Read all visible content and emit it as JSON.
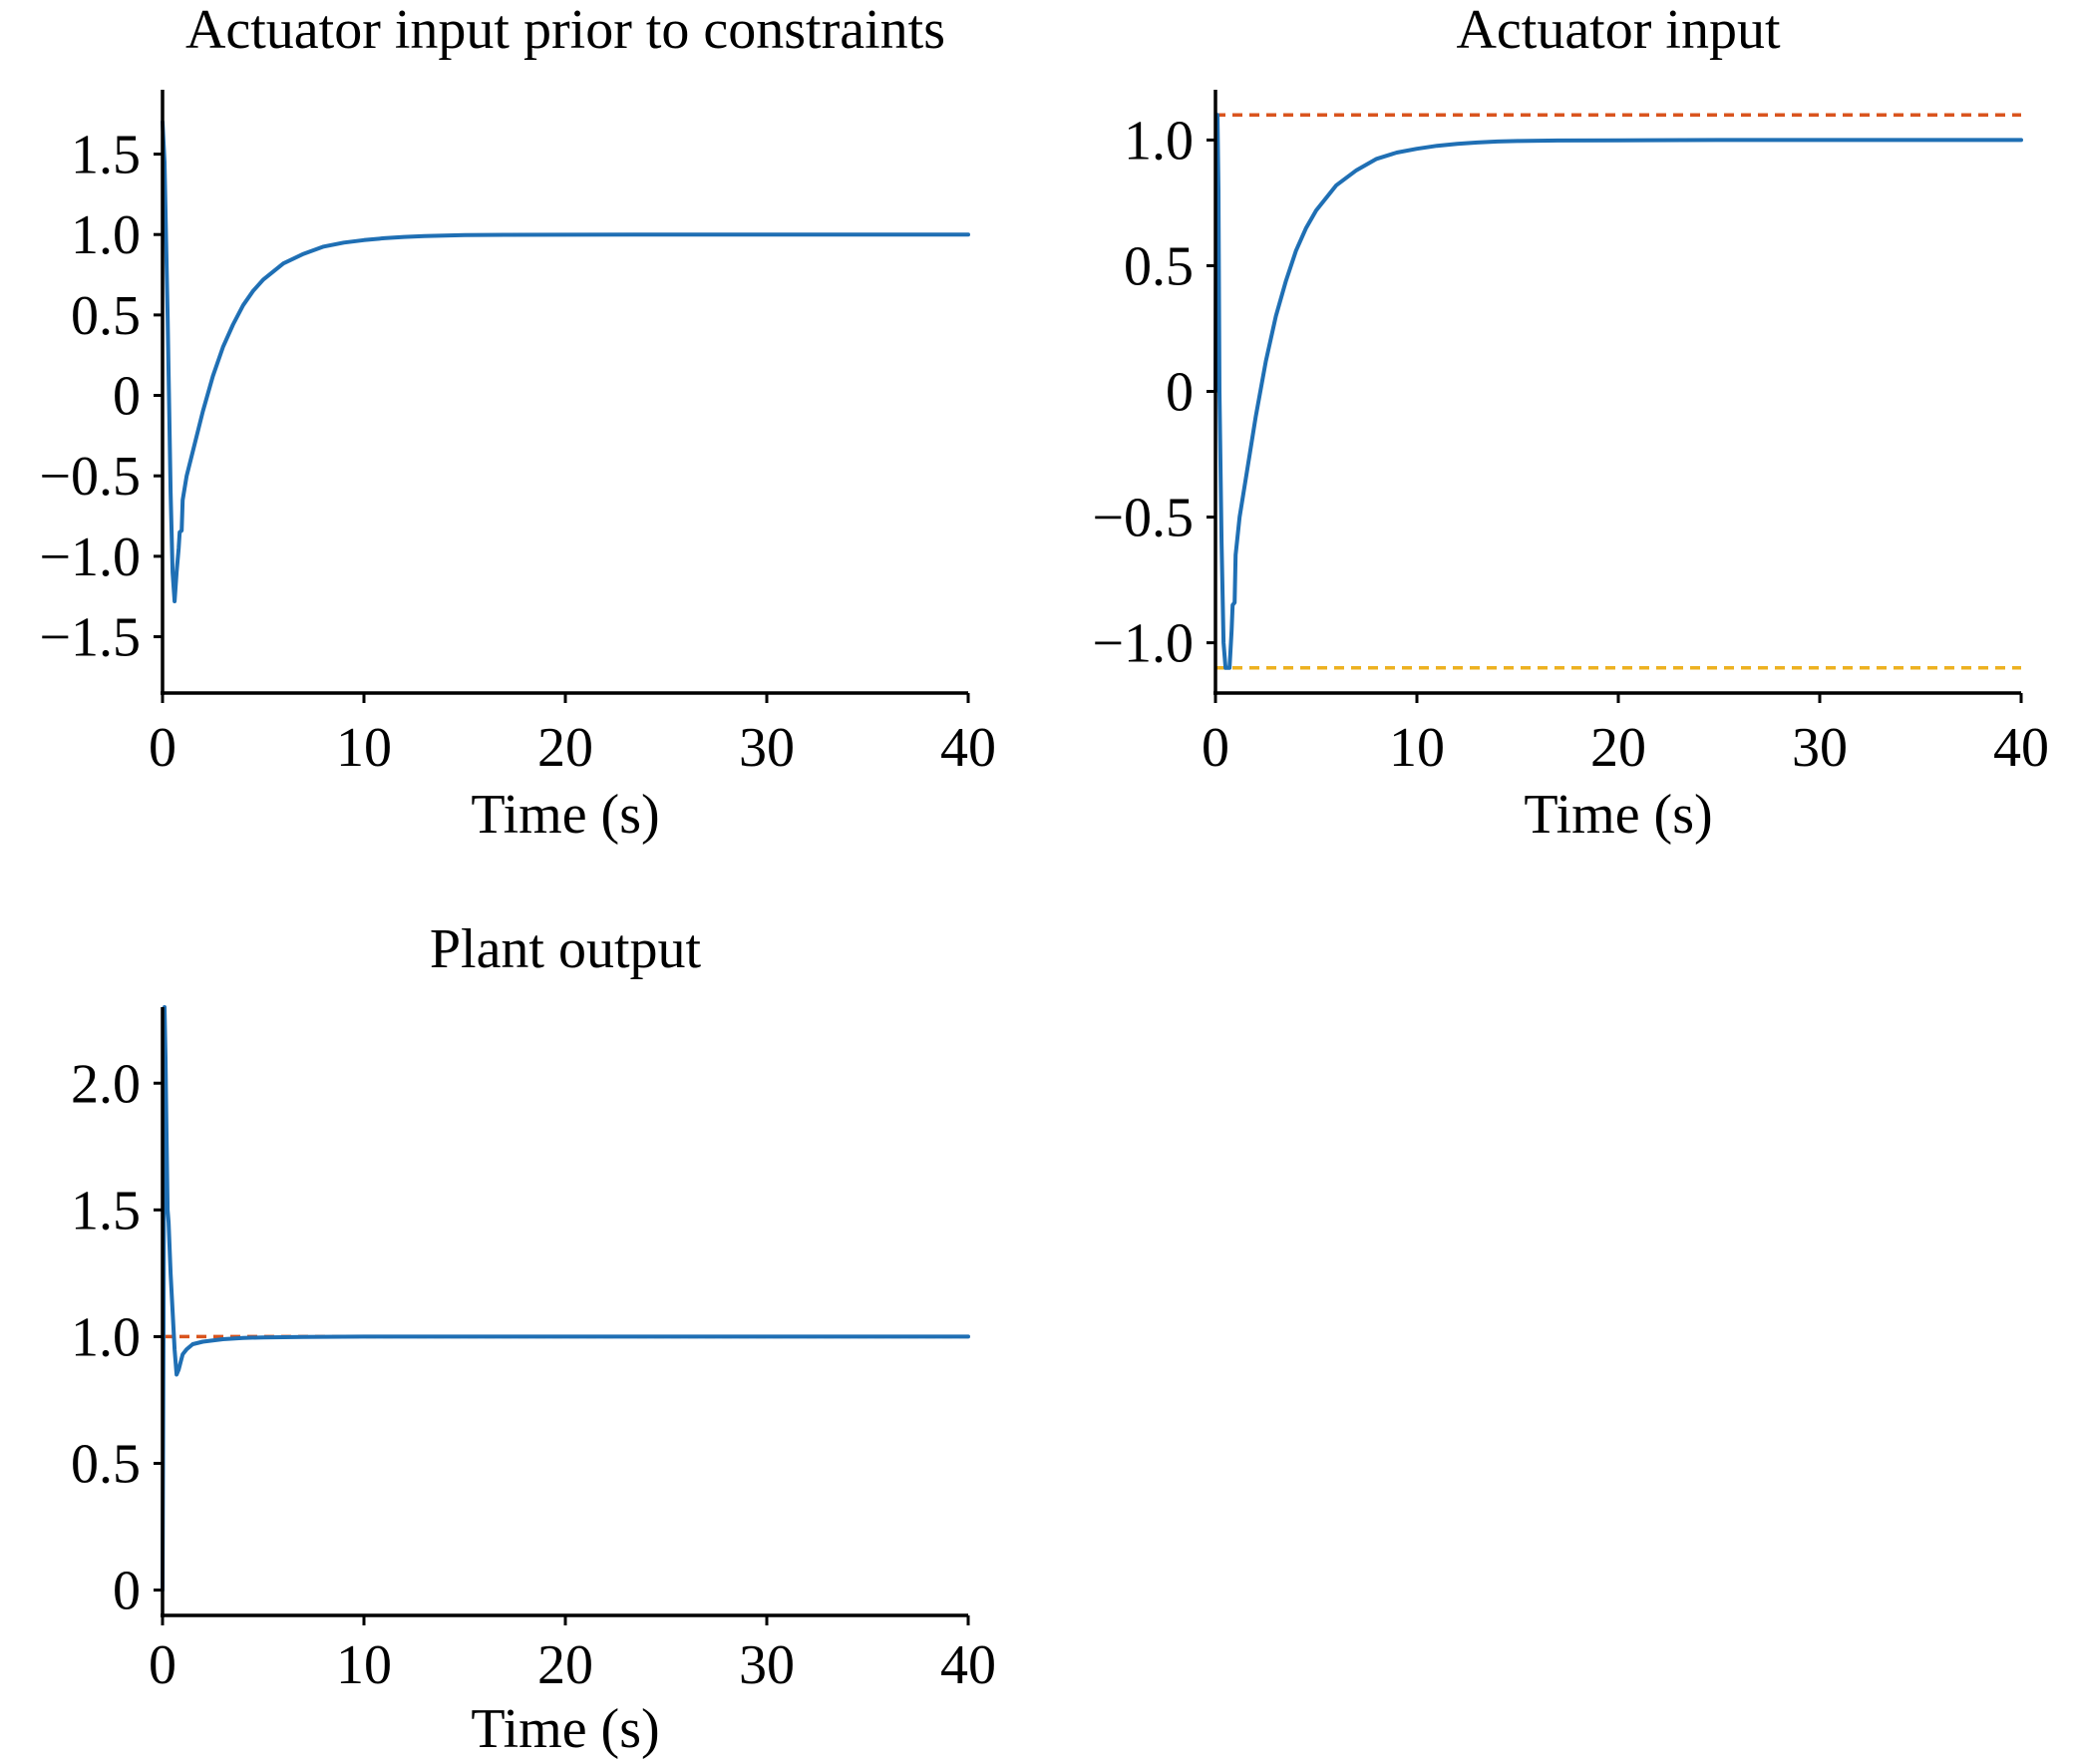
{
  "chart_data": [
    {
      "type": "line",
      "title": "Actuator input prior to constraints",
      "xlabel": "Time (s)",
      "ylabel": "",
      "xlim": [
        0,
        40
      ],
      "ylim": [
        -1.85,
        1.9
      ],
      "xticks": [
        "0",
        "10",
        "20",
        "30",
        "40"
      ],
      "xtick_values": [
        0,
        10,
        20,
        30,
        40
      ],
      "yticks": [
        "1.5",
        "1.0",
        "0.5",
        "0",
        "−0.5",
        "−1.0",
        "−1.5"
      ],
      "ytick_values": [
        1.5,
        1.0,
        0.5,
        0,
        -0.5,
        -1.0,
        -1.5
      ],
      "grid": false,
      "series": [
        {
          "color": "#1f6fb4",
          "x": [
            0,
            0.1,
            0.25,
            0.4,
            0.5,
            0.6,
            0.7,
            0.8,
            0.85,
            0.95,
            1.0,
            1.2,
            1.5,
            2,
            2.5,
            3,
            3.5,
            4,
            4.5,
            5,
            6,
            7,
            8,
            9,
            10,
            11,
            12,
            13,
            14,
            15,
            17,
            20,
            25,
            30,
            35,
            40
          ],
          "y": [
            1.7,
            1.45,
            0.5,
            -0.6,
            -1.1,
            -1.28,
            -1.1,
            -0.95,
            -0.85,
            -0.84,
            -0.65,
            -0.5,
            -0.35,
            -0.1,
            0.12,
            0.3,
            0.44,
            0.56,
            0.65,
            0.72,
            0.82,
            0.88,
            0.925,
            0.95,
            0.965,
            0.977,
            0.985,
            0.99,
            0.994,
            0.996,
            0.998,
            0.999,
            1.0,
            1.0,
            1.0,
            1.0
          ]
        }
      ],
      "ref_lines": []
    },
    {
      "type": "line",
      "title": "Actuator input",
      "xlabel": "Time (s)",
      "ylabel": "",
      "xlim": [
        0,
        40
      ],
      "ylim": [
        -1.2,
        1.2
      ],
      "xticks": [
        "0",
        "10",
        "20",
        "30",
        "40"
      ],
      "xtick_values": [
        0,
        10,
        20,
        30,
        40
      ],
      "yticks": [
        "1.0",
        "0.5",
        "0",
        "−0.5",
        "−1.0"
      ],
      "ytick_values": [
        1.0,
        0.5,
        0,
        -0.5,
        -1.0
      ],
      "grid": false,
      "series": [
        {
          "color": "#1f6fb4",
          "x": [
            0,
            0.05,
            0.1,
            0.15,
            0.2,
            0.3,
            0.4,
            0.5,
            0.6,
            0.7,
            0.8,
            0.85,
            0.95,
            1.0,
            1.2,
            1.5,
            2,
            2.5,
            3,
            3.5,
            4,
            4.5,
            5,
            6,
            7,
            8,
            9,
            10,
            11,
            12,
            13,
            14,
            15,
            17,
            20,
            25,
            30,
            35,
            40
          ],
          "y": [
            0,
            1.1,
            1.1,
            0.8,
            0.0,
            -0.6,
            -1.0,
            -1.1,
            -1.1,
            -1.1,
            -0.95,
            -0.85,
            -0.84,
            -0.65,
            -0.5,
            -0.35,
            -0.1,
            0.12,
            0.3,
            0.44,
            0.56,
            0.65,
            0.72,
            0.82,
            0.88,
            0.925,
            0.95,
            0.965,
            0.977,
            0.985,
            0.99,
            0.994,
            0.996,
            0.998,
            0.999,
            1.0,
            1.0,
            1.0,
            1.0
          ]
        }
      ],
      "ref_lines": [
        {
          "y": 1.1,
          "color": "#d9541e"
        },
        {
          "y": -1.1,
          "color": "#edb120"
        }
      ]
    },
    {
      "type": "line",
      "title": "Plant output",
      "xlabel": "Time (s)",
      "ylabel": "",
      "xlim": [
        0,
        40
      ],
      "ylim": [
        -0.1,
        2.3
      ],
      "xticks": [
        "0",
        "10",
        "20",
        "30",
        "40"
      ],
      "xtick_values": [
        0,
        10,
        20,
        30,
        40
      ],
      "yticks": [
        "2.0",
        "1.5",
        "1.0",
        "0.5",
        "0"
      ],
      "ytick_values": [
        2.0,
        1.5,
        1.0,
        0.5,
        0
      ],
      "grid": false,
      "series": [
        {
          "color": "#1f6fb4",
          "x": [
            0,
            0.05,
            0.1,
            0.15,
            0.2,
            0.25,
            0.3,
            0.4,
            0.5,
            0.6,
            0.7,
            0.8,
            0.9,
            1.0,
            1.2,
            1.5,
            2,
            3,
            4,
            5,
            7,
            10,
            15,
            20,
            30,
            40
          ],
          "y": [
            0,
            1.0,
            2.3,
            2.1,
            1.8,
            1.5,
            1.45,
            1.25,
            1.1,
            0.95,
            0.85,
            0.87,
            0.9,
            0.93,
            0.95,
            0.97,
            0.98,
            0.99,
            0.995,
            0.997,
            0.999,
            1.0,
            1.0,
            1.0,
            1.0,
            1.0
          ]
        }
      ],
      "ref_lines": [
        {
          "y": 1.0,
          "color": "#d9541e"
        }
      ]
    }
  ]
}
